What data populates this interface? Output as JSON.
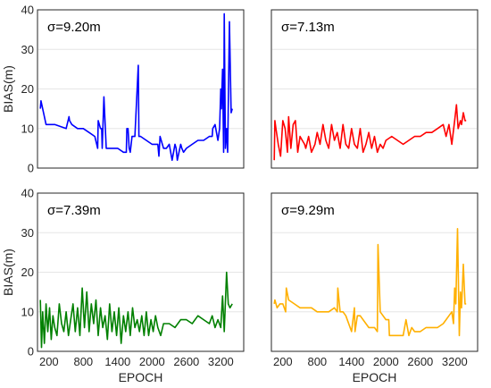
{
  "chart_data": [
    {
      "type": "line",
      "panel": "top-left",
      "annotation": "σ=9.20m",
      "color": "#0000ff",
      "ylabel": "BIAS(m)",
      "xlabel": "",
      "ylim": [
        0,
        40
      ],
      "yticks": [
        "0",
        "10",
        "20",
        "30",
        "40"
      ],
      "xlim": [
        0,
        3600
      ],
      "xticks": [],
      "grid": "horizontal",
      "series": [
        {
          "x": [
            50,
            60,
            150,
            240,
            300,
            500,
            550,
            560,
            600,
            700,
            800,
            900,
            1000,
            1050,
            1060,
            1100,
            1120,
            1130,
            1160,
            1200,
            1300,
            1400,
            1500,
            1550,
            1560,
            1580,
            1600,
            1620,
            1650,
            1700,
            1760,
            1770,
            1800,
            1900,
            2000,
            2100,
            2120,
            2140,
            2200,
            2250,
            2300,
            2350,
            2400,
            2420,
            2440,
            2500,
            2520,
            2550,
            2600,
            2700,
            2800,
            2900,
            3000,
            3050,
            3060,
            3100,
            3150,
            3180,
            3200,
            3210,
            3230,
            3250,
            3260,
            3280,
            3300,
            3320,
            3350,
            3380,
            3400
          ],
          "y": [
            15,
            17,
            11,
            11,
            11,
            10,
            13,
            12,
            11,
            10,
            10,
            9,
            8,
            5,
            12,
            10,
            10,
            5,
            18,
            5,
            5,
            5,
            4,
            4,
            10,
            10,
            5,
            4,
            8,
            8,
            26,
            8,
            8,
            7,
            6,
            6,
            3,
            8,
            5,
            5,
            6,
            2,
            6,
            5,
            2,
            6,
            5,
            4,
            5,
            6,
            7,
            7,
            8,
            8,
            10,
            11,
            7,
            10,
            20,
            15,
            25,
            4,
            39,
            5,
            10,
            4,
            37,
            14,
            15
          ]
        }
      ]
    },
    {
      "type": "line",
      "panel": "top-right",
      "annotation": "σ=7.13m",
      "color": "#ff0000",
      "ylabel": "",
      "xlabel": "",
      "ylim": [
        0,
        40
      ],
      "yticks": [],
      "xlim": [
        0,
        3600
      ],
      "xticks": [],
      "grid": "horizontal",
      "series": [
        {
          "x": [
            50,
            60,
            80,
            120,
            160,
            200,
            240,
            280,
            300,
            340,
            380,
            420,
            460,
            500,
            540,
            580,
            600,
            650,
            700,
            760,
            800,
            850,
            900,
            950,
            1000,
            1050,
            1100,
            1150,
            1200,
            1250,
            1300,
            1350,
            1400,
            1450,
            1500,
            1550,
            1600,
            1650,
            1700,
            1750,
            1800,
            1850,
            1900,
            1950,
            2000,
            2100,
            2200,
            2300,
            2400,
            2500,
            2600,
            2700,
            2800,
            2900,
            3000,
            3050,
            3100,
            3150,
            3200,
            3230,
            3260,
            3300,
            3320,
            3350,
            3380,
            3400
          ],
          "y": [
            2,
            12,
            10,
            6,
            3,
            12,
            10,
            4,
            13,
            5,
            11,
            12,
            4,
            8,
            7,
            6,
            5,
            8,
            4,
            6,
            9,
            6,
            11,
            7,
            5,
            11,
            7,
            9,
            5,
            11,
            6,
            5,
            10,
            6,
            5,
            10,
            4,
            6,
            9,
            5,
            8,
            4,
            6,
            5,
            7,
            8,
            7,
            6,
            7,
            8,
            8,
            9,
            9,
            10,
            11,
            8,
            11,
            6,
            12,
            16,
            10,
            12,
            11,
            14,
            12,
            12
          ]
        }
      ]
    },
    {
      "type": "line",
      "panel": "bottom-left",
      "annotation": "σ=7.39m",
      "color": "#008000",
      "ylabel": "BIAS(m)",
      "xlabel": "EPOCH",
      "ylim": [
        0,
        40
      ],
      "yticks": [
        "0",
        "10",
        "20",
        "30",
        "40"
      ],
      "xlim": [
        0,
        3600
      ],
      "xticks": [
        "200",
        "800",
        "1400",
        "2000",
        "2600",
        "3200"
      ],
      "grid": "horizontal",
      "series": [
        {
          "x": [
            50,
            70,
            90,
            120,
            150,
            180,
            210,
            240,
            270,
            300,
            340,
            380,
            420,
            460,
            500,
            540,
            580,
            620,
            660,
            700,
            740,
            780,
            820,
            860,
            900,
            940,
            980,
            1020,
            1060,
            1100,
            1140,
            1180,
            1220,
            1260,
            1300,
            1340,
            1380,
            1420,
            1460,
            1500,
            1540,
            1580,
            1620,
            1660,
            1700,
            1740,
            1780,
            1820,
            1860,
            1900,
            1940,
            1980,
            2020,
            2060,
            2100,
            2150,
            2200,
            2300,
            2400,
            2500,
            2600,
            2700,
            2800,
            2900,
            3000,
            3050,
            3100,
            3150,
            3200,
            3230,
            3260,
            3300,
            3330,
            3360,
            3400
          ],
          "y": [
            13,
            1,
            10,
            2,
            12,
            5,
            11,
            3,
            9,
            6,
            4,
            12,
            7,
            5,
            10,
            4,
            8,
            12,
            5,
            11,
            4,
            16,
            6,
            15,
            5,
            12,
            7,
            13,
            4,
            11,
            6,
            9,
            3,
            12,
            5,
            10,
            4,
            11,
            2,
            9,
            5,
            10,
            4,
            11,
            6,
            8,
            5,
            9,
            4,
            10,
            4,
            8,
            5,
            9,
            6,
            4,
            7,
            7,
            6,
            8,
            8,
            7,
            9,
            8,
            7,
            9,
            6,
            8,
            6,
            14,
            5,
            20,
            12,
            11,
            12
          ]
        }
      ]
    },
    {
      "type": "line",
      "panel": "bottom-right",
      "annotation": "σ=9.29m",
      "color": "#ffb000",
      "ylabel": "",
      "xlabel": "EPOCH",
      "ylim": [
        0,
        40
      ],
      "yticks": [],
      "xlim": [
        0,
        3600
      ],
      "xticks": [
        "200",
        "800",
        "1400",
        "2000",
        "2600",
        "3200"
      ],
      "grid": "horizontal",
      "series": [
        {
          "x": [
            50,
            60,
            100,
            150,
            200,
            250,
            260,
            300,
            400,
            500,
            600,
            700,
            800,
            900,
            1000,
            1100,
            1150,
            1160,
            1200,
            1250,
            1300,
            1400,
            1450,
            1460,
            1500,
            1550,
            1600,
            1650,
            1700,
            1800,
            1850,
            1860,
            1900,
            2000,
            2050,
            2060,
            2100,
            2200,
            2300,
            2350,
            2400,
            2450,
            2500,
            2600,
            2700,
            2800,
            2900,
            3000,
            3050,
            3100,
            3150,
            3180,
            3200,
            3220,
            3250,
            3280,
            3300,
            3320,
            3350,
            3380,
            3400
          ],
          "y": [
            12,
            13,
            11,
            12,
            12,
            10,
            16,
            13,
            12,
            11,
            11,
            11,
            10,
            10,
            10,
            11,
            10,
            16,
            10,
            10,
            9,
            5,
            11,
            5,
            9,
            9,
            8,
            7,
            6,
            6,
            5,
            27,
            10,
            8,
            8,
            4,
            4,
            4,
            4,
            8,
            4,
            6,
            5,
            5,
            6,
            6,
            6,
            7,
            8,
            9,
            10,
            7,
            16,
            12,
            31,
            4,
            15,
            11,
            22,
            12,
            12
          ]
        }
      ]
    }
  ]
}
